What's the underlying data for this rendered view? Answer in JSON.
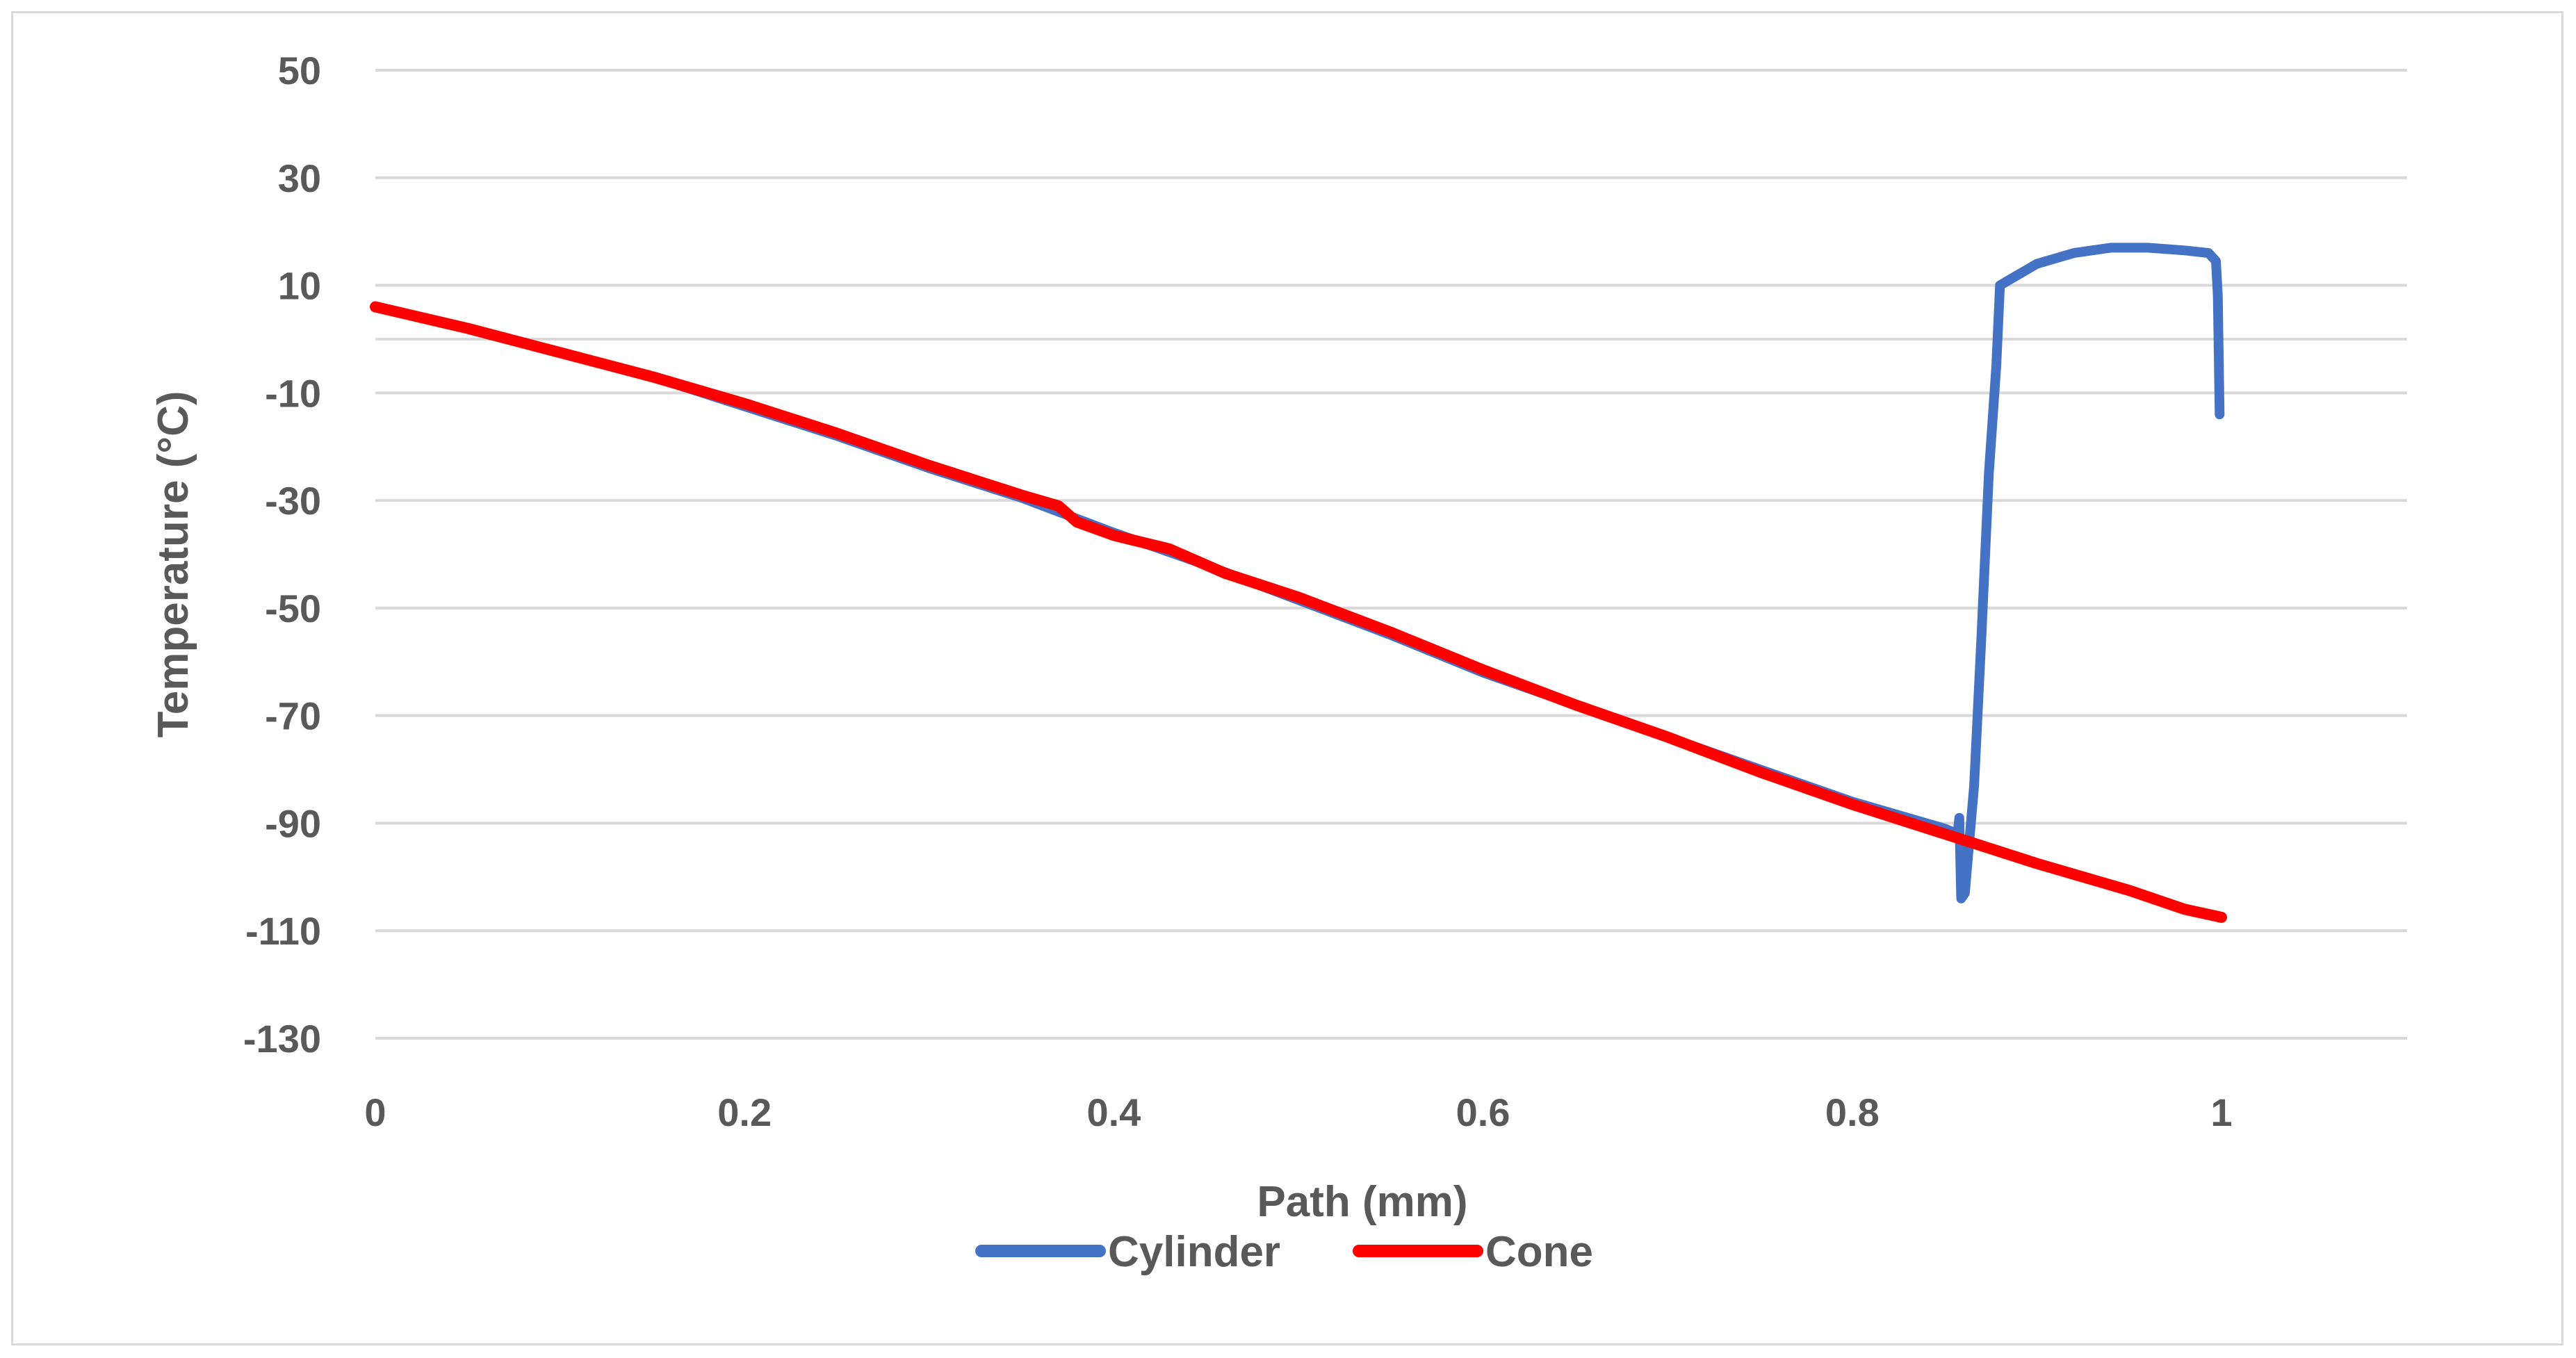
{
  "chart_data": {
    "type": "line",
    "title": "",
    "xlabel": "Path (mm)",
    "ylabel": "Temperature (°C)",
    "xlim": [
      0,
      1.1
    ],
    "ylim": [
      -130,
      50
    ],
    "x_ticks": [
      0,
      0.2,
      0.4,
      0.6,
      0.8,
      1
    ],
    "x_tick_labels": [
      "0",
      "0.2",
      "0.4",
      "0.6",
      "0.8",
      "1"
    ],
    "y_ticks": [
      50,
      30,
      10,
      -10,
      -30,
      -50,
      -70,
      -90,
      -110,
      -130
    ],
    "y_tick_labels": [
      "50",
      "30",
      "10",
      "-10",
      "-30",
      "-50",
      "-70",
      "-90",
      "-110",
      "-130"
    ],
    "grid": true,
    "legend_position": "bottom",
    "series": [
      {
        "name": "Cylinder",
        "color": "#4472c4",
        "points": [
          [
            0,
            6
          ],
          [
            0.05,
            2
          ],
          [
            0.1,
            -2.5
          ],
          [
            0.15,
            -7
          ],
          [
            0.2,
            -12.5
          ],
          [
            0.25,
            -18
          ],
          [
            0.3,
            -24
          ],
          [
            0.35,
            -29.5
          ],
          [
            0.4,
            -36
          ],
          [
            0.45,
            -42
          ],
          [
            0.5,
            -48.5
          ],
          [
            0.55,
            -55
          ],
          [
            0.6,
            -62
          ],
          [
            0.65,
            -68
          ],
          [
            0.7,
            -74
          ],
          [
            0.75,
            -80
          ],
          [
            0.8,
            -86
          ],
          [
            0.85,
            -91
          ],
          [
            0.857,
            -92
          ],
          [
            0.858,
            -89
          ],
          [
            0.859,
            -104
          ],
          [
            0.861,
            -103
          ],
          [
            0.863,
            -95
          ],
          [
            0.866,
            -83
          ],
          [
            0.87,
            -55
          ],
          [
            0.874,
            -25
          ],
          [
            0.878,
            -5
          ],
          [
            0.88,
            10
          ],
          [
            0.89,
            12
          ],
          [
            0.9,
            14
          ],
          [
            0.92,
            16
          ],
          [
            0.94,
            17
          ],
          [
            0.96,
            17
          ],
          [
            0.98,
            16.5
          ],
          [
            0.993,
            16
          ],
          [
            0.997,
            14.5
          ],
          [
            0.998,
            8
          ],
          [
            0.999,
            -14
          ]
        ]
      },
      {
        "name": "Cone",
        "color": "#ff0000",
        "points": [
          [
            0,
            6
          ],
          [
            0.05,
            2
          ],
          [
            0.1,
            -2.5
          ],
          [
            0.15,
            -7
          ],
          [
            0.2,
            -12
          ],
          [
            0.25,
            -17.5
          ],
          [
            0.3,
            -23.5
          ],
          [
            0.35,
            -29
          ],
          [
            0.37,
            -31
          ],
          [
            0.38,
            -34
          ],
          [
            0.4,
            -36.5
          ],
          [
            0.43,
            -39
          ],
          [
            0.46,
            -43.5
          ],
          [
            0.5,
            -48
          ],
          [
            0.55,
            -54.5
          ],
          [
            0.6,
            -61.5
          ],
          [
            0.65,
            -68
          ],
          [
            0.7,
            -74
          ],
          [
            0.75,
            -80.5
          ],
          [
            0.8,
            -86.5
          ],
          [
            0.85,
            -92
          ],
          [
            0.9,
            -97.5
          ],
          [
            0.95,
            -102.5
          ],
          [
            0.98,
            -106
          ],
          [
            1,
            -107.5
          ]
        ]
      }
    ]
  }
}
